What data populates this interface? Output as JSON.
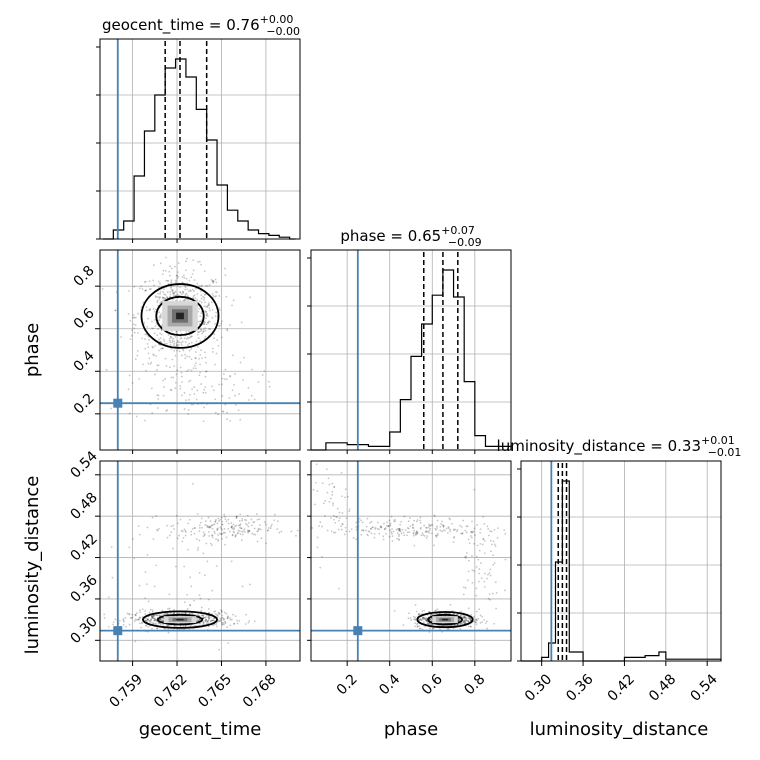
{
  "chart_data": {
    "type": "corner",
    "parameters": [
      "geocent_time",
      "phase",
      "luminosity_distance"
    ],
    "truths": {
      "geocent_time": 0.758,
      "phase": 0.25,
      "luminosity_distance": 0.314
    },
    "truth_color": "#4682b4",
    "grid": true,
    "titles": {
      "geocent_time": {
        "name": "geocent_time",
        "value": "0.76",
        "plus": "+0.00",
        "minus": "−0.00"
      },
      "phase": {
        "name": "phase",
        "value": "0.65",
        "plus": "+0.07",
        "minus": "−0.09"
      },
      "luminosity_distance": {
        "name": "luminosity_distance",
        "value": "0.33",
        "plus": "+0.01",
        "minus": "−0.01"
      }
    },
    "axis_labels": {
      "x": [
        "geocent_time",
        "phase",
        "luminosity_distance"
      ],
      "y": [
        "phase",
        "luminosity_distance"
      ]
    },
    "ranges": {
      "geocent_time": [
        0.7568,
        0.7703
      ],
      "phase": [
        0.03,
        0.97
      ],
      "luminosity_distance": [
        0.27,
        0.56
      ]
    },
    "ticks": {
      "geocent_time": [
        "0.759",
        "0.762",
        "0.765",
        "0.768"
      ],
      "phase": [
        "0.2",
        "0.4",
        "0.6",
        "0.8"
      ],
      "luminosity_distance": [
        "0.30",
        "0.36",
        "0.42",
        "0.48",
        "0.54"
      ]
    },
    "histograms": {
      "geocent_time": {
        "edges": [
          0.757,
          0.7577,
          0.7584,
          0.7591,
          0.7598,
          0.7605,
          0.7612,
          0.7619,
          0.7626,
          0.7633,
          0.764,
          0.7647,
          0.7654,
          0.7661,
          0.7668,
          0.7675,
          0.7682,
          0.7689,
          0.7696,
          0.77
        ],
        "counts": [
          0,
          0.05,
          0.1,
          0.35,
          0.6,
          0.8,
          0.95,
          1.0,
          0.9,
          0.72,
          0.55,
          0.3,
          0.16,
          0.1,
          0.05,
          0.03,
          0.02,
          0.01,
          0
        ]
      },
      "phase": {
        "edges": [
          0.03,
          0.1,
          0.2,
          0.3,
          0.4,
          0.45,
          0.5,
          0.55,
          0.6,
          0.65,
          0.7,
          0.75,
          0.8,
          0.85,
          0.97
        ],
        "counts": [
          0,
          0.04,
          0.03,
          0.02,
          0.1,
          0.28,
          0.52,
          0.7,
          0.86,
          1.0,
          0.85,
          0.38,
          0.08,
          0.02
        ]
      },
      "luminosity_distance": {
        "edges": [
          0.27,
          0.3,
          0.31,
          0.32,
          0.33,
          0.34,
          0.36,
          0.42,
          0.45,
          0.47,
          0.48,
          0.56
        ],
        "counts": [
          0,
          0.02,
          0.1,
          0.55,
          1.0,
          0.05,
          0.0,
          0.02,
          0.03,
          0.05,
          0.01
        ]
      }
    },
    "quantile_lines": {
      "geocent_time": [
        0.7612,
        0.7622,
        0.764
      ],
      "phase": [
        0.56,
        0.65,
        0.72
      ],
      "luminosity_distance": [
        0.324,
        0.33,
        0.336
      ]
    }
  }
}
